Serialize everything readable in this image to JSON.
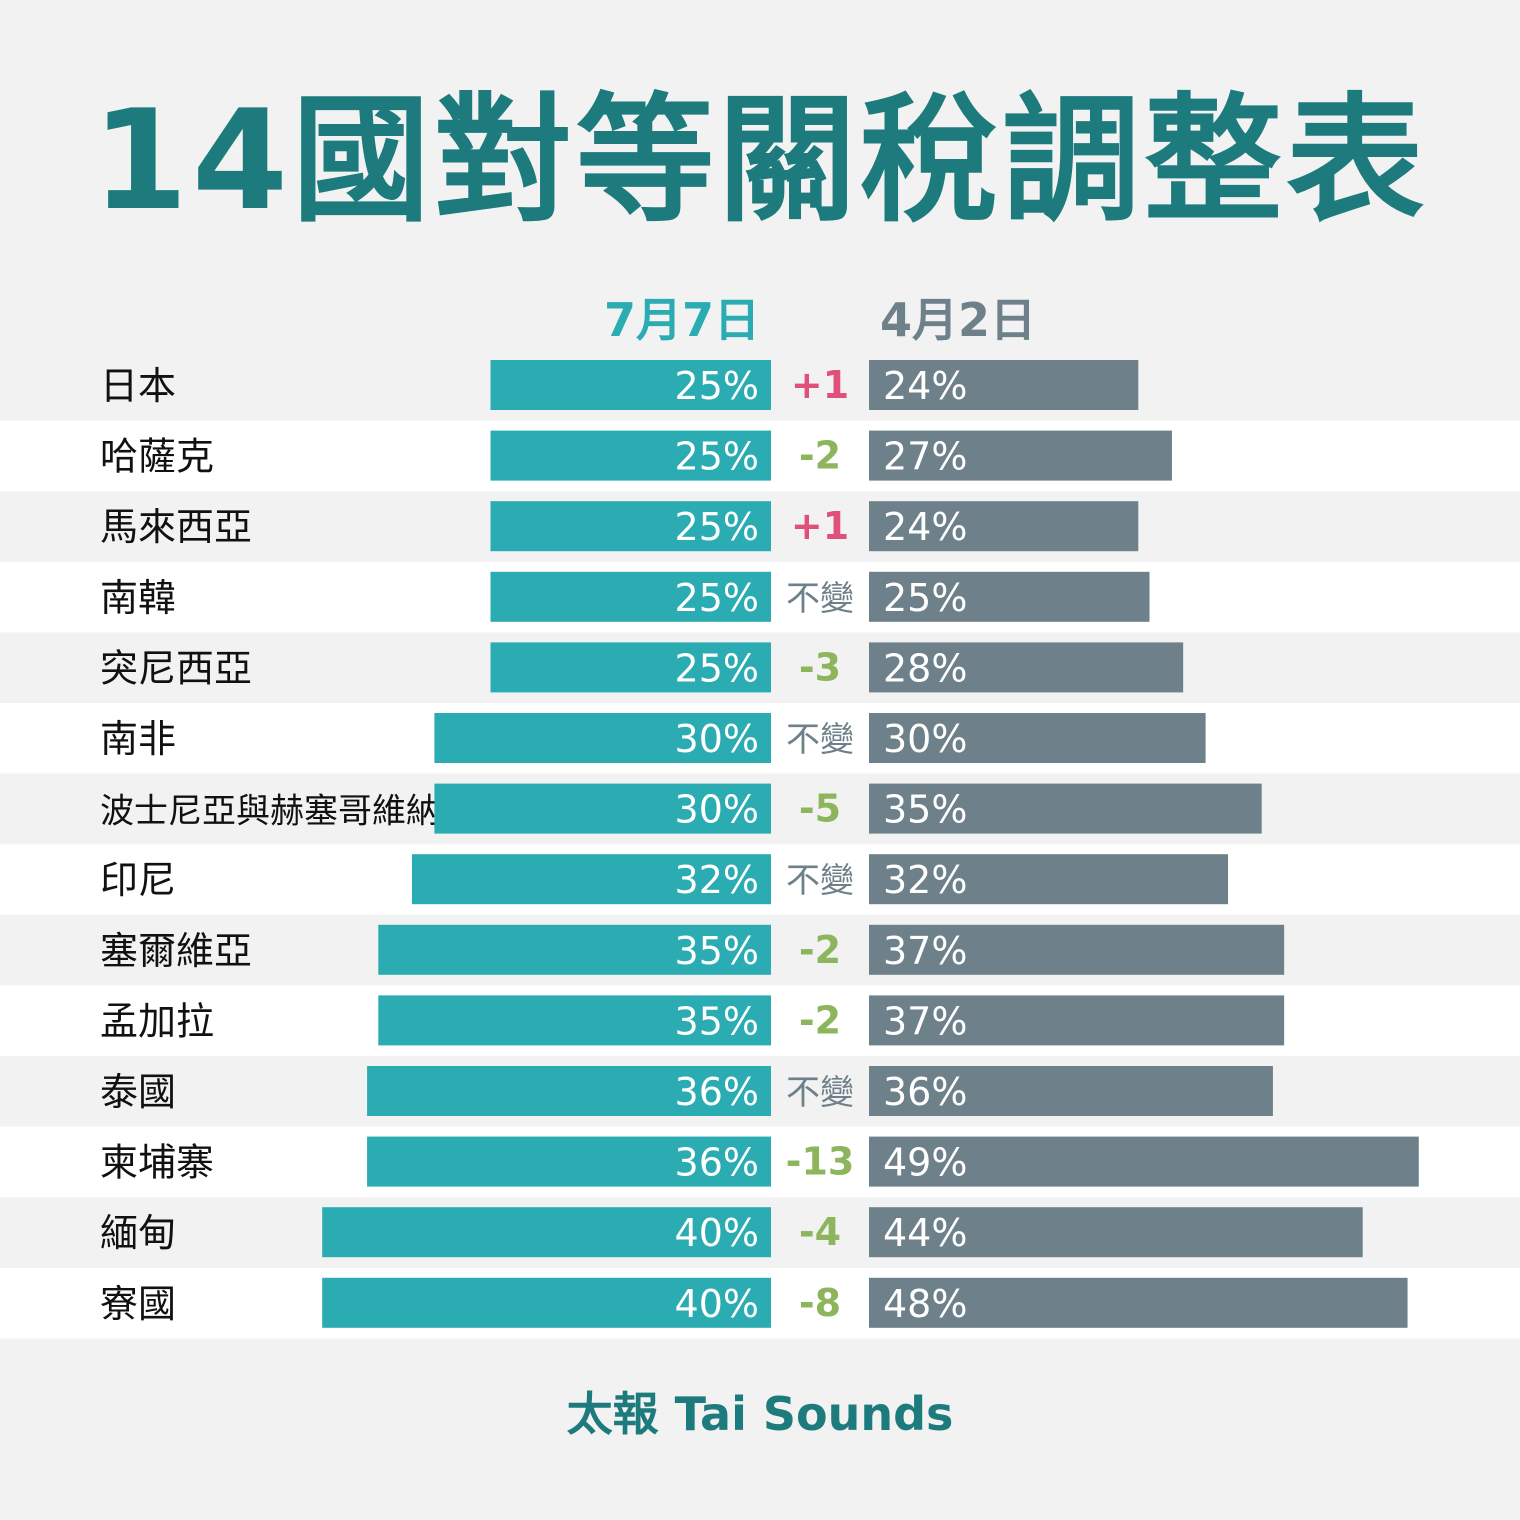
{
  "title": "14國對等關稅調整表",
  "footer": "太報 Tai Sounds",
  "colors": {
    "new_bar": "#2aacb2",
    "old_bar": "#6e8089",
    "title": "#1e7b7d",
    "increase": "#e0507a",
    "decrease": "#8cb55c",
    "unchanged": "#6e8089"
  },
  "chart_data": {
    "type": "bar",
    "title": "14國對等關稅調整表",
    "series_labels": {
      "new": "7月7日",
      "old": "4月2日"
    },
    "categories": [
      "日本",
      "哈薩克",
      "馬來西亞",
      "南韓",
      "突尼西亞",
      "南非",
      "波士尼亞與赫塞哥維納",
      "印尼",
      "塞爾維亞",
      "孟加拉",
      "泰國",
      "柬埔寨",
      "緬甸",
      "寮國"
    ],
    "series": [
      {
        "name": "7月7日",
        "values": [
          25,
          25,
          25,
          25,
          25,
          30,
          30,
          32,
          35,
          35,
          36,
          36,
          40,
          40
        ]
      },
      {
        "name": "4月2日",
        "values": [
          24,
          27,
          24,
          25,
          28,
          30,
          35,
          32,
          37,
          37,
          36,
          49,
          44,
          48
        ]
      }
    ],
    "value_labels_new": [
      "25%",
      "25%",
      "25%",
      "25%",
      "25%",
      "30%",
      "30%",
      "32%",
      "35%",
      "35%",
      "36%",
      "36%",
      "40%",
      "40%"
    ],
    "value_labels_old": [
      "24%",
      "27%",
      "24%",
      "25%",
      "28%",
      "30%",
      "35%",
      "32%",
      "37%",
      "37%",
      "36%",
      "49%",
      "44%",
      "48%"
    ],
    "changes": [
      "+1",
      "-2",
      "+1",
      "不變",
      "-3",
      "不變",
      "-5",
      "不變",
      "-2",
      "-2",
      "不變",
      "-13",
      "-4",
      "-8"
    ],
    "xlim": [
      0,
      50
    ],
    "grid": false,
    "legend": "top-center"
  }
}
